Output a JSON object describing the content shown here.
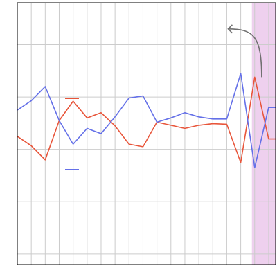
{
  "chart_data": {
    "type": "line",
    "title": "",
    "xlabel": "",
    "ylabel": "",
    "xlim": [
      0,
      18.5
    ],
    "ylim": [
      -3.2,
      1.8
    ],
    "grid": true,
    "legend": "center-left",
    "x": [
      0,
      1,
      2,
      3,
      4,
      5,
      6,
      7,
      8,
      9,
      10,
      11,
      12,
      13,
      14,
      15,
      16,
      17,
      18,
      18.5
    ],
    "series": [
      {
        "name": "",
        "color": "#e8553a",
        "values": [
          -0.75,
          -0.93,
          -1.2,
          -0.45,
          -0.08,
          -0.4,
          -0.3,
          -0.55,
          -0.9,
          -0.95,
          -0.48,
          -0.54,
          -0.6,
          -0.54,
          -0.51,
          -0.52,
          -1.25,
          0.38,
          -0.8,
          -0.8
        ]
      },
      {
        "name": "",
        "color": "#6470e8",
        "values": [
          -0.25,
          -0.07,
          0.2,
          -0.45,
          -0.9,
          -0.6,
          -0.7,
          -0.38,
          -0.02,
          0.02,
          -0.48,
          -0.4,
          -0.3,
          -0.38,
          -0.42,
          -0.42,
          0.45,
          -1.35,
          -0.2,
          -0.2
        ]
      }
    ],
    "highlight_region": {
      "x_start": 16.8,
      "x_end": 18.5,
      "color": "#e3b0e3"
    },
    "annotations": [
      {
        "type": "arrow",
        "from": [
          17.5,
          0.38
        ],
        "to": [
          15,
          1.3
        ],
        "color": "#707070"
      }
    ]
  }
}
